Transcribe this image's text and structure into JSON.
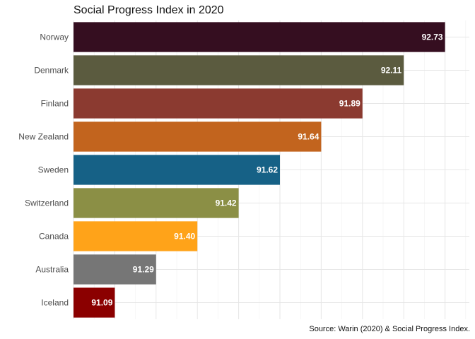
{
  "chart_data": {
    "type": "bar",
    "orientation": "horizontal",
    "title": "Social Progress Index in 2020",
    "caption": "Source: Warin (2020) & Social Progress Index.",
    "xlabel": "",
    "ylabel": "",
    "categories": [
      "Norway",
      "Denmark",
      "Finland",
      "New Zealand",
      "Sweden",
      "Switzerland",
      "Canada",
      "Australia",
      "Iceland"
    ],
    "values": [
      92.73,
      92.11,
      91.89,
      91.64,
      91.62,
      91.42,
      91.4,
      91.29,
      91.09
    ],
    "value_labels": [
      "92.73",
      "92.11",
      "91.89",
      "91.64",
      "91.62",
      "91.42",
      "91.40",
      "91.29",
      "91.09"
    ],
    "colors": [
      "#350e20",
      "#5b5b3f",
      "#8b3a30",
      "#c2641e",
      "#166186",
      "#8b8f45",
      "#ffa319",
      "#767676",
      "#8b0000"
    ],
    "rank_axis": [
      1,
      9
    ],
    "grid": true,
    "legend": "none",
    "x_tick_labels_shown": false
  }
}
